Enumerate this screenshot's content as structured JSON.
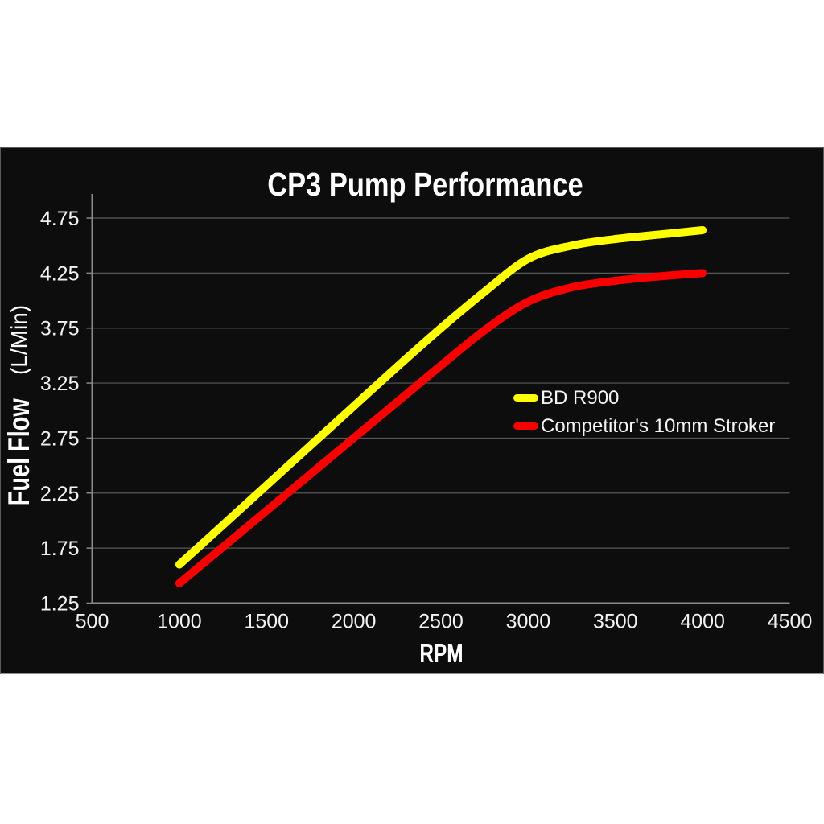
{
  "panel": {
    "background": "#0d0d0d",
    "border_color": "#5a5a5a"
  },
  "chart_data": {
    "type": "line",
    "title": "CP3 Pump Performance",
    "xlabel": "RPM",
    "ylabel": "Fuel Flow (L/Min)",
    "ylabel_main": "Fuel Flow",
    "ylabel_units": "(L/Min)",
    "xlim": [
      500,
      4500
    ],
    "ylim": [
      1.25,
      4.75
    ],
    "x_ticks": [
      500,
      1000,
      1500,
      2000,
      2500,
      3000,
      3500,
      4000,
      4500
    ],
    "y_ticks": [
      1.25,
      1.75,
      2.25,
      2.75,
      3.25,
      3.75,
      4.25,
      4.75
    ],
    "grid": "horizontal-only",
    "legend_position": "center-right",
    "colors": {
      "gridline": "#585858",
      "axis": "#8a8a8a",
      "tick_text": "#f2f2f2",
      "title_text": "#ffffff",
      "plot_background": "#0d0d0d"
    },
    "series": [
      {
        "name": "BD R900",
        "color": "#ffff00",
        "x": [
          1000,
          1250,
          1500,
          1750,
          2000,
          2250,
          2500,
          2750,
          3000,
          3250,
          3500,
          3750,
          4000
        ],
        "y": [
          1.6,
          1.96,
          2.32,
          2.68,
          3.04,
          3.4,
          3.75,
          4.08,
          4.38,
          4.5,
          4.56,
          4.6,
          4.64
        ]
      },
      {
        "name": "Competitor's 10mm Stroker",
        "color": "#f80000",
        "x": [
          1000,
          1250,
          1500,
          1750,
          2000,
          2250,
          2500,
          2750,
          3000,
          3250,
          3500,
          3750,
          4000
        ],
        "y": [
          1.43,
          1.76,
          2.09,
          2.42,
          2.75,
          3.08,
          3.41,
          3.73,
          3.99,
          4.12,
          4.18,
          4.22,
          4.25
        ]
      }
    ]
  }
}
